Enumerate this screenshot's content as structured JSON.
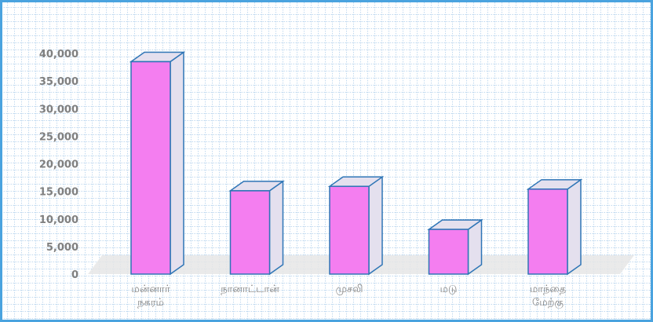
{
  "chart_data": {
    "type": "bar",
    "categories": [
      [
        "மன்னார்",
        "நகரம்"
      ],
      [
        "நானாட்டான்"
      ],
      [
        "முசலி"
      ],
      [
        "மடு"
      ],
      [
        "மாந்தை",
        "மேற்கு"
      ]
    ],
    "values": [
      38500,
      15100,
      15900,
      8100,
      15400
    ],
    "ylim": [
      0,
      40000
    ],
    "yticks": [
      0,
      5000,
      10000,
      15000,
      20000,
      25000,
      30000,
      35000,
      40000
    ],
    "ytick_labels": [
      "0",
      "5,000",
      "10,000",
      "15,000",
      "20,000",
      "25,000",
      "30,000",
      "35,000",
      "40,000"
    ],
    "grid": true,
    "title": "",
    "xlabel": "",
    "ylabel": "",
    "colors": {
      "bar_front": "#f47ef0",
      "bar_edge": "#2e75b6",
      "bar_side": "#e4e0ee",
      "grid_dot": "#5a9bd5",
      "frame": "#4aa3df",
      "floor": "#e6e6e6",
      "label": "#7f7f7f"
    }
  }
}
